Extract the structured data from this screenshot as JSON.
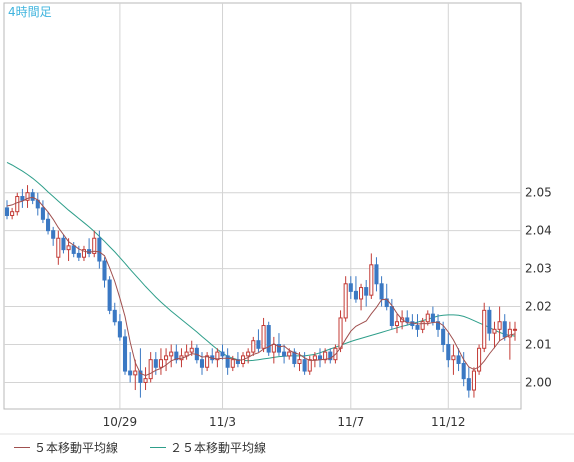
{
  "chart_data": {
    "type": "candlestick",
    "title": "4時間足",
    "x_tick_labels": [
      "10/29",
      "11/3",
      "11/7",
      "11/12"
    ],
    "ylim": [
      1.993,
      2.1
    ],
    "y_ticks": [
      2.0,
      2.01,
      2.02,
      2.03,
      2.04,
      2.05
    ],
    "y_tick_labels": [
      "2.00",
      "2.01",
      "2.02",
      "2.03",
      "2.04",
      "2.05"
    ],
    "grid": true,
    "legend_position": "bottom",
    "colors": {
      "up": "#c33b36",
      "down": "#3a78c3",
      "ma5": "#a0504f",
      "ma25": "#2e9e8a",
      "grid": "#d4d4d4",
      "title": "#40b4de"
    },
    "series": [
      {
        "name": "５本移動平均線",
        "color": "#a0504f"
      },
      {
        "name": "２５本移動平均線",
        "color": "#2e9e8a"
      }
    ],
    "candles": [
      [
        2.046,
        2.048,
        2.043,
        2.044
      ],
      [
        2.044,
        2.046,
        2.043,
        2.045
      ],
      [
        2.045,
        2.05,
        2.044,
        2.049
      ],
      [
        2.049,
        2.051,
        2.046,
        2.048
      ],
      [
        2.048,
        2.052,
        2.046,
        2.05
      ],
      [
        2.05,
        2.051,
        2.047,
        2.048
      ],
      [
        2.048,
        2.05,
        2.044,
        2.046
      ],
      [
        2.046,
        2.048,
        2.042,
        2.043
      ],
      [
        2.043,
        2.045,
        2.039,
        2.04
      ],
      [
        2.04,
        2.041,
        2.036,
        2.038
      ],
      [
        2.033,
        2.04,
        2.031,
        2.038
      ],
      [
        2.038,
        2.039,
        2.034,
        2.035
      ],
      [
        2.035,
        2.038,
        2.032,
        2.036
      ],
      [
        2.036,
        2.037,
        2.033,
        2.034
      ],
      [
        2.034,
        2.036,
        2.032,
        2.033
      ],
      [
        2.033,
        2.036,
        2.032,
        2.035
      ],
      [
        2.035,
        2.038,
        2.033,
        2.034
      ],
      [
        2.034,
        2.04,
        2.033,
        2.038
      ],
      [
        2.038,
        2.04,
        2.03,
        2.032
      ],
      [
        2.032,
        2.033,
        2.025,
        2.027
      ],
      [
        2.027,
        2.028,
        2.018,
        2.019
      ],
      [
        2.019,
        2.021,
        2.015,
        2.016
      ],
      [
        2.016,
        2.018,
        2.011,
        2.012
      ],
      [
        2.012,
        2.014,
        2.002,
        2.003
      ],
      [
        2.003,
        2.008,
        2.0,
        2.002
      ],
      [
        2.002,
        2.006,
        1.998,
        2.003
      ],
      [
        2.003,
        2.009,
        1.996,
        2.0
      ],
      [
        2.0,
        2.004,
        1.998,
        2.001
      ],
      [
        2.001,
        2.008,
        2.0,
        2.006
      ],
      [
        2.006,
        2.008,
        2.002,
        2.004
      ],
      [
        2.004,
        2.009,
        2.002,
        2.006
      ],
      [
        2.006,
        2.009,
        2.003,
        2.007
      ],
      [
        2.007,
        2.01,
        2.004,
        2.008
      ],
      [
        2.008,
        2.01,
        2.005,
        2.006
      ],
      [
        2.006,
        2.009,
        2.004,
        2.007
      ],
      [
        2.007,
        2.01,
        2.006,
        2.008
      ],
      [
        2.008,
        2.011,
        2.007,
        2.009
      ],
      [
        2.009,
        2.01,
        2.005,
        2.006
      ],
      [
        2.006,
        2.008,
        2.002,
        2.004
      ],
      [
        2.004,
        2.008,
        2.003,
        2.007
      ],
      [
        2.007,
        2.009,
        2.005,
        2.006
      ],
      [
        2.006,
        2.009,
        2.004,
        2.008
      ],
      [
        2.008,
        2.01,
        2.006,
        2.007
      ],
      [
        2.007,
        2.009,
        2.002,
        2.004
      ],
      [
        2.004,
        2.007,
        2.003,
        2.006
      ],
      [
        2.006,
        2.008,
        2.004,
        2.005
      ],
      [
        2.005,
        2.008,
        2.004,
        2.007
      ],
      [
        2.007,
        2.009,
        2.005,
        2.008
      ],
      [
        2.008,
        2.012,
        2.007,
        2.011
      ],
      [
        2.011,
        2.014,
        2.008,
        2.009
      ],
      [
        2.009,
        2.017,
        2.008,
        2.015
      ],
      [
        2.015,
        2.016,
        2.007,
        2.008
      ],
      [
        2.008,
        2.012,
        2.005,
        2.01
      ],
      [
        2.01,
        2.013,
        2.007,
        2.008
      ],
      [
        2.008,
        2.01,
        2.005,
        2.007
      ],
      [
        2.007,
        2.009,
        2.006,
        2.008
      ],
      [
        2.008,
        2.009,
        2.004,
        2.005
      ],
      [
        2.005,
        2.008,
        2.003,
        2.006
      ],
      [
        2.006,
        2.008,
        2.002,
        2.003
      ],
      [
        2.003,
        2.007,
        2.002,
        2.006
      ],
      [
        2.006,
        2.008,
        2.004,
        2.007
      ],
      [
        2.007,
        2.009,
        2.004,
        2.006
      ],
      [
        2.006,
        2.009,
        2.005,
        2.008
      ],
      [
        2.008,
        2.009,
        2.005,
        2.006
      ],
      [
        2.006,
        2.01,
        2.005,
        2.009
      ],
      [
        2.009,
        2.019,
        2.008,
        2.017
      ],
      [
        2.017,
        2.028,
        2.016,
        2.026
      ],
      [
        2.026,
        2.028,
        2.022,
        2.024
      ],
      [
        2.024,
        2.028,
        2.021,
        2.022
      ],
      [
        2.022,
        2.026,
        2.019,
        2.025
      ],
      [
        2.025,
        2.027,
        2.02,
        2.023
      ],
      [
        2.023,
        2.034,
        2.022,
        2.031
      ],
      [
        2.031,
        2.033,
        2.024,
        2.026
      ],
      [
        2.026,
        2.028,
        2.02,
        2.022
      ],
      [
        2.022,
        2.026,
        2.019,
        2.02
      ],
      [
        2.02,
        2.022,
        2.014,
        2.015
      ],
      [
        2.015,
        2.018,
        2.013,
        2.016
      ],
      [
        2.016,
        2.019,
        2.014,
        2.017
      ],
      [
        2.017,
        2.019,
        2.015,
        2.016
      ],
      [
        2.016,
        2.018,
        2.014,
        2.015
      ],
      [
        2.015,
        2.018,
        2.012,
        2.014
      ],
      [
        2.014,
        2.017,
        2.013,
        2.016
      ],
      [
        2.016,
        2.019,
        2.015,
        2.018
      ],
      [
        2.018,
        2.02,
        2.015,
        2.016
      ],
      [
        2.016,
        2.018,
        2.012,
        2.014
      ],
      [
        2.014,
        2.016,
        2.008,
        2.01
      ],
      [
        2.01,
        2.013,
        2.004,
        2.006
      ],
      [
        2.006,
        2.01,
        2.002,
        2.007
      ],
      [
        2.007,
        2.009,
        2.003,
        2.005
      ],
      [
        2.005,
        2.008,
        1.999,
        2.001
      ],
      [
        2.001,
        2.004,
        1.996,
        1.998
      ],
      [
        1.998,
        2.004,
        1.996,
        2.003
      ],
      [
        2.003,
        2.01,
        2.002,
        2.009
      ],
      [
        2.009,
        2.021,
        2.008,
        2.019
      ],
      [
        2.019,
        2.02,
        2.011,
        2.013
      ],
      [
        2.013,
        2.016,
        2.009,
        2.014
      ],
      [
        2.014,
        2.02,
        2.011,
        2.016
      ],
      [
        2.016,
        2.018,
        2.011,
        2.012
      ],
      [
        2.012,
        2.016,
        2.006,
        2.014
      ],
      [
        2.014,
        2.016,
        2.011,
        2.014
      ]
    ],
    "ma5": [
      2.0465,
      2.0468,
      2.0474,
      2.0478,
      2.0485,
      2.0488,
      2.0481,
      2.0465,
      2.0449,
      2.043,
      2.0408,
      2.039,
      2.0371,
      2.0362,
      2.0352,
      2.0346,
      2.0343,
      2.0346,
      2.0344,
      2.0334,
      2.0302,
      2.0266,
      2.0222,
      2.0174,
      2.0106,
      2.0052,
      2.0024,
      2.0018,
      2.0024,
      2.0032,
      2.0037,
      2.0046,
      2.0057,
      2.0062,
      2.0064,
      2.0068,
      2.0076,
      2.0074,
      2.0067,
      2.0068,
      2.0064,
      2.0062,
      2.0064,
      2.0064,
      2.0062,
      2.0058,
      2.006,
      2.0066,
      2.0074,
      2.0078,
      2.0088,
      2.0094,
      2.0102,
      2.0094,
      2.0096,
      2.0085,
      2.0078,
      2.0074,
      2.0065,
      2.0058,
      2.0058,
      2.006,
      2.0061,
      2.0063,
      2.0074,
      2.0091,
      2.0114,
      2.0135,
      2.0148,
      2.0155,
      2.0162,
      2.0181,
      2.0198,
      2.0218,
      2.0219,
      2.0203,
      2.0182,
      2.0166,
      2.0157,
      2.0157,
      2.0154,
      2.0155,
      2.0155,
      2.0158,
      2.0159,
      2.015,
      2.0133,
      2.0112,
      2.0086,
      2.006,
      2.0041,
      2.0034,
      2.0041,
      2.0056,
      2.0075,
      2.0092,
      2.011,
      2.0118,
      2.0125,
      2.0128
    ],
    "ma25": [
      2.058,
      2.0573,
      2.0565,
      2.0557,
      2.0548,
      2.0538,
      2.0527,
      2.0515,
      2.0502,
      2.049,
      2.0478,
      2.0466,
      2.0454,
      2.0443,
      2.0432,
      2.0421,
      2.041,
      2.0398,
      2.0385,
      2.0372,
      2.0358,
      2.0344,
      2.0329,
      2.0314,
      2.0298,
      2.0283,
      2.0268,
      2.0253,
      2.0239,
      2.0225,
      2.0212,
      2.02,
      2.0188,
      2.0177,
      2.0166,
      2.0155,
      2.0144,
      2.0133,
      2.0121,
      2.011,
      2.0098,
      2.0087,
      2.0077,
      2.0069,
      2.0064,
      2.006,
      2.0058,
      2.0057,
      2.0058,
      2.006,
      2.0062,
      2.0064,
      2.0066,
      2.0068,
      2.0069,
      2.007,
      2.007,
      2.007,
      2.007,
      2.0072,
      2.0074,
      2.0078,
      2.0083,
      2.0088,
      2.0093,
      2.0098,
      2.0103,
      2.0108,
      2.0112,
      2.0116,
      2.012,
      2.0124,
      2.0128,
      2.0132,
      2.0136,
      2.014,
      2.0144,
      2.0148,
      2.0151,
      2.0155,
      2.0159,
      2.0163,
      2.0167,
      2.0171,
      2.0175,
      2.0177,
      2.0178,
      2.0178,
      2.0177,
      2.0174,
      2.0169,
      2.0163,
      2.0157,
      2.0151,
      2.0145,
      2.0138,
      2.0132,
      2.0127,
      2.0124,
      2.0122
    ]
  }
}
